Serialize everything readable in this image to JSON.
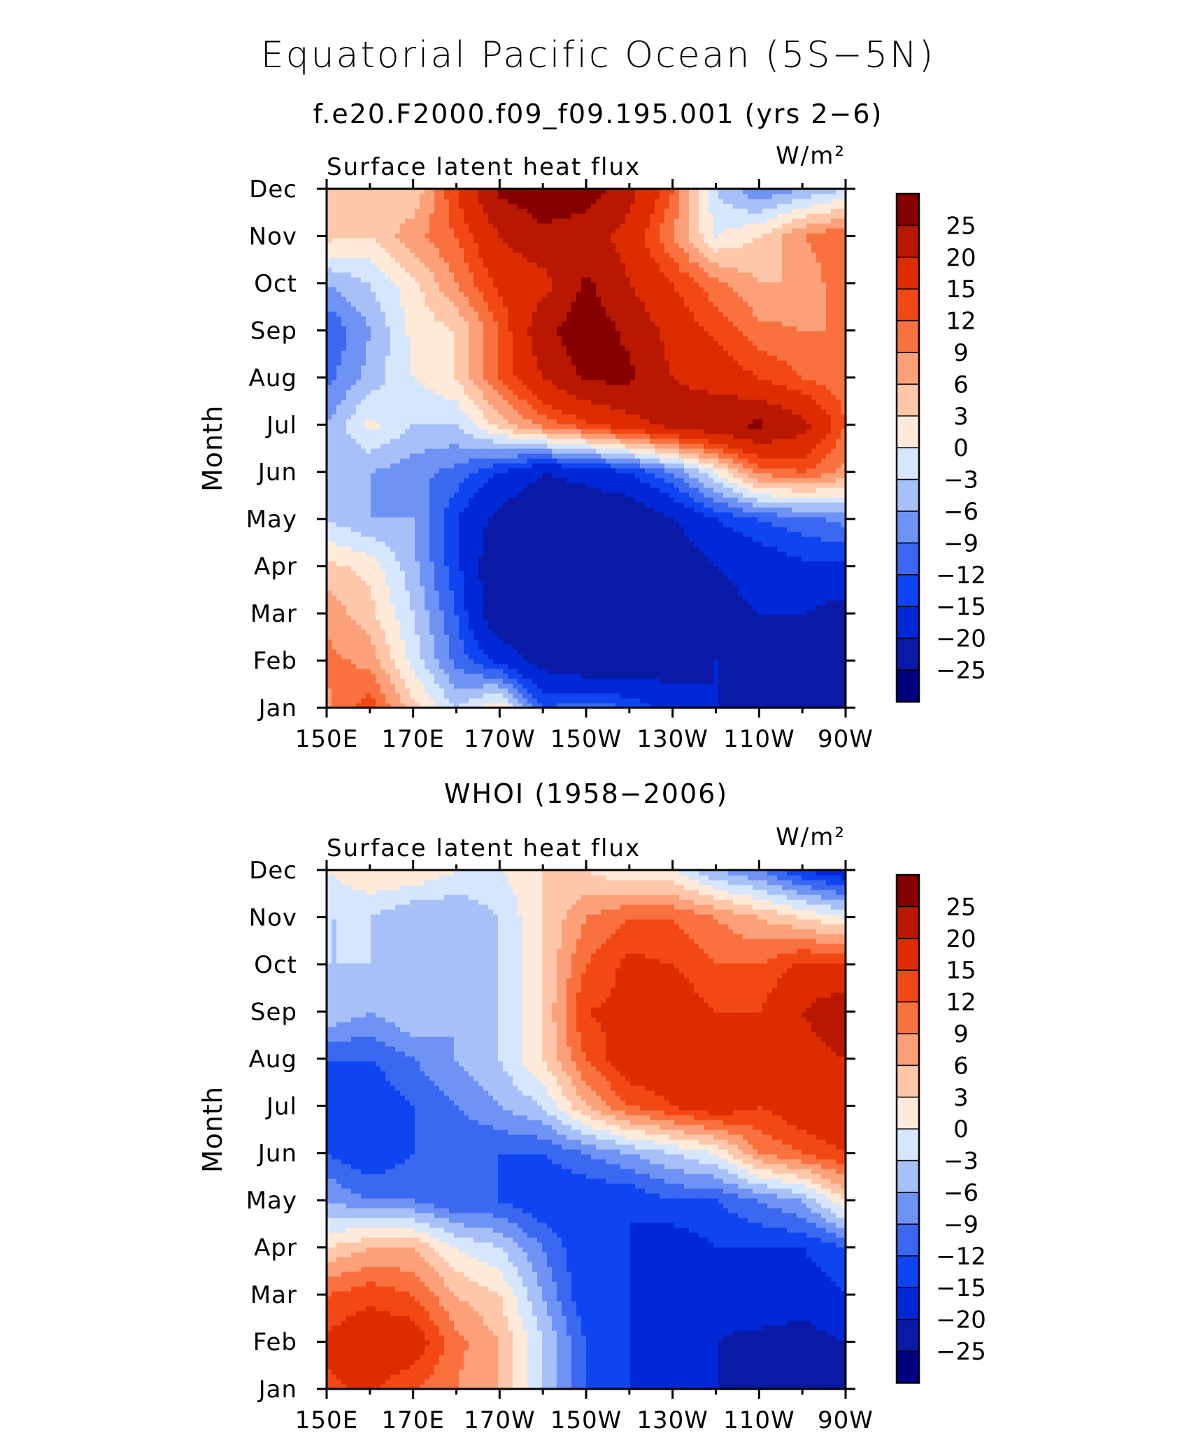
{
  "title": "Equatorial Pacific Ocean (5S−5N)",
  "subtitle": "f.e20.F2000.f09_f09.195.001 (yrs 2−6)",
  "chart_data": [
    {
      "type": "heatmap",
      "source_label": "",
      "left_label": "Surface latent heat flux",
      "units": "W/m²",
      "ylabel": "Month",
      "x_ticks": [
        "150E",
        "170E",
        "170W",
        "150W",
        "130W",
        "110W",
        "90W"
      ],
      "y_ticks": [
        "Jan",
        "Feb",
        "Mar",
        "Apr",
        "May",
        "Jun",
        "Jul",
        "Aug",
        "Sep",
        "Oct",
        "Nov",
        "Dec"
      ],
      "x_lon": [
        150,
        160,
        170,
        180,
        190,
        200,
        210,
        220,
        230,
        240,
        250,
        260,
        270
      ],
      "values": [
        [
          8,
          14,
          4,
          -3,
          3,
          -12,
          -10,
          -12,
          -18,
          -20,
          -22,
          -25,
          -25
        ],
        [
          10,
          8,
          -1,
          -10,
          -16,
          -22,
          -25,
          -25,
          -22,
          -20,
          -22,
          -22,
          -22
        ],
        [
          8,
          4,
          -3,
          -12,
          -25,
          -25,
          -25,
          -25,
          -25,
          -22,
          -20,
          -20,
          -22
        ],
        [
          4,
          2,
          -5,
          -14,
          -25,
          -25,
          -25,
          -25,
          -25,
          -20,
          -18,
          -16,
          -16
        ],
        [
          -3,
          -6,
          -6,
          -15,
          -22,
          -25,
          -25,
          -25,
          -20,
          -15,
          -12,
          -10,
          -8
        ],
        [
          -6,
          -6,
          -8,
          -10,
          -15,
          -20,
          -18,
          -15,
          -9,
          0,
          10,
          12,
          8
        ],
        [
          -6,
          1,
          -3,
          -3,
          4,
          10,
          14,
          18,
          22,
          24,
          26,
          22,
          12
        ],
        [
          -10,
          -5,
          0,
          3,
          12,
          20,
          26,
          26,
          20,
          18,
          15,
          12,
          10
        ],
        [
          -12,
          -6,
          1,
          3,
          12,
          24,
          28,
          24,
          18,
          14,
          10,
          9,
          9
        ],
        [
          -6,
          -3,
          2,
          9,
          16,
          18,
          26,
          20,
          15,
          10,
          6,
          6,
          12
        ],
        [
          4,
          3,
          8,
          12,
          20,
          24,
          22,
          18,
          9,
          0,
          3,
          9,
          12
        ],
        [
          6,
          5,
          3,
          15,
          26,
          28,
          28,
          22,
          12,
          -3,
          -9,
          -6,
          -3
        ]
      ],
      "levels": [
        -25,
        -20,
        -15,
        -12,
        -9,
        -6,
        -3,
        0,
        3,
        6,
        9,
        12,
        15,
        20,
        25
      ],
      "colorbar_labels": [
        "25",
        "20",
        "15",
        "12",
        "9",
        "6",
        "3",
        "0",
        "−3",
        "−6",
        "−9",
        "−12",
        "−15",
        "−20",
        "−25"
      ]
    },
    {
      "type": "heatmap",
      "source_label": "WHOI (1958−2006)",
      "left_label": "Surface latent heat flux",
      "units": "W/m²",
      "ylabel": "Month",
      "x_ticks": [
        "150E",
        "170E",
        "170W",
        "150W",
        "130W",
        "110W",
        "90W"
      ],
      "y_ticks": [
        "Jan",
        "Feb",
        "Mar",
        "Apr",
        "May",
        "Jun",
        "Jul",
        "Aug",
        "Sep",
        "Oct",
        "Nov",
        "Dec"
      ],
      "x_lon": [
        150,
        160,
        170,
        180,
        190,
        200,
        210,
        220,
        230,
        240,
        250,
        260,
        270
      ],
      "values": [
        [
          14,
          16,
          12,
          9,
          6,
          -3,
          -12,
          -15,
          -18,
          -20,
          -20,
          -22,
          -25
        ],
        [
          16,
          18,
          18,
          10,
          6,
          -3,
          -12,
          -15,
          -18,
          -20,
          -22,
          -22,
          -20
        ],
        [
          12,
          14,
          12,
          6,
          3,
          -6,
          -15,
          -15,
          -15,
          -18,
          -15,
          -18,
          -15
        ],
        [
          3,
          6,
          6,
          0,
          -3,
          -9,
          -15,
          -15,
          -18,
          -15,
          -15,
          -15,
          -12
        ],
        [
          -6,
          -9,
          -9,
          -12,
          -12,
          -15,
          -15,
          -15,
          -12,
          -12,
          -9,
          -6,
          3
        ],
        [
          -12,
          -15,
          -12,
          -12,
          -12,
          -12,
          -9,
          -6,
          -3,
          0,
          9,
          12,
          15
        ],
        [
          -15,
          -15,
          -12,
          -9,
          -6,
          -3,
          6,
          12,
          15,
          18,
          15,
          18,
          20
        ],
        [
          -12,
          -12,
          -9,
          -6,
          -3,
          3,
          12,
          18,
          18,
          15,
          15,
          18,
          20
        ],
        [
          -3,
          -6,
          -3,
          -6,
          -3,
          3,
          15,
          16,
          18,
          15,
          15,
          20,
          24
        ],
        [
          -3,
          -3,
          -3,
          -3,
          -3,
          3,
          12,
          16,
          15,
          12,
          12,
          16,
          15
        ],
        [
          -3,
          -3,
          -6,
          -6,
          -3,
          3,
          9,
          12,
          12,
          9,
          6,
          3,
          0
        ],
        [
          0,
          3,
          3,
          0,
          0,
          3,
          3,
          0,
          0,
          -6,
          -9,
          -15,
          -18
        ]
      ],
      "levels": [
        -25,
        -20,
        -15,
        -12,
        -9,
        -6,
        -3,
        0,
        3,
        6,
        9,
        12,
        15,
        20,
        25
      ],
      "colorbar_labels": [
        "25",
        "20",
        "15",
        "12",
        "9",
        "6",
        "3",
        "0",
        "−3",
        "−6",
        "−9",
        "−12",
        "−15",
        "−20",
        "−25"
      ]
    }
  ],
  "colors": {
    "palette": [
      "#000080",
      "#0a1aa6",
      "#0028d6",
      "#0f45f0",
      "#3a68f0",
      "#6e93f5",
      "#a8c0f8",
      "#d6e6fc",
      "#ffe9d8",
      "#fec7a9",
      "#fca07a",
      "#f8713f",
      "#f24914",
      "#dd2c00",
      "#b81800",
      "#870000"
    ]
  }
}
